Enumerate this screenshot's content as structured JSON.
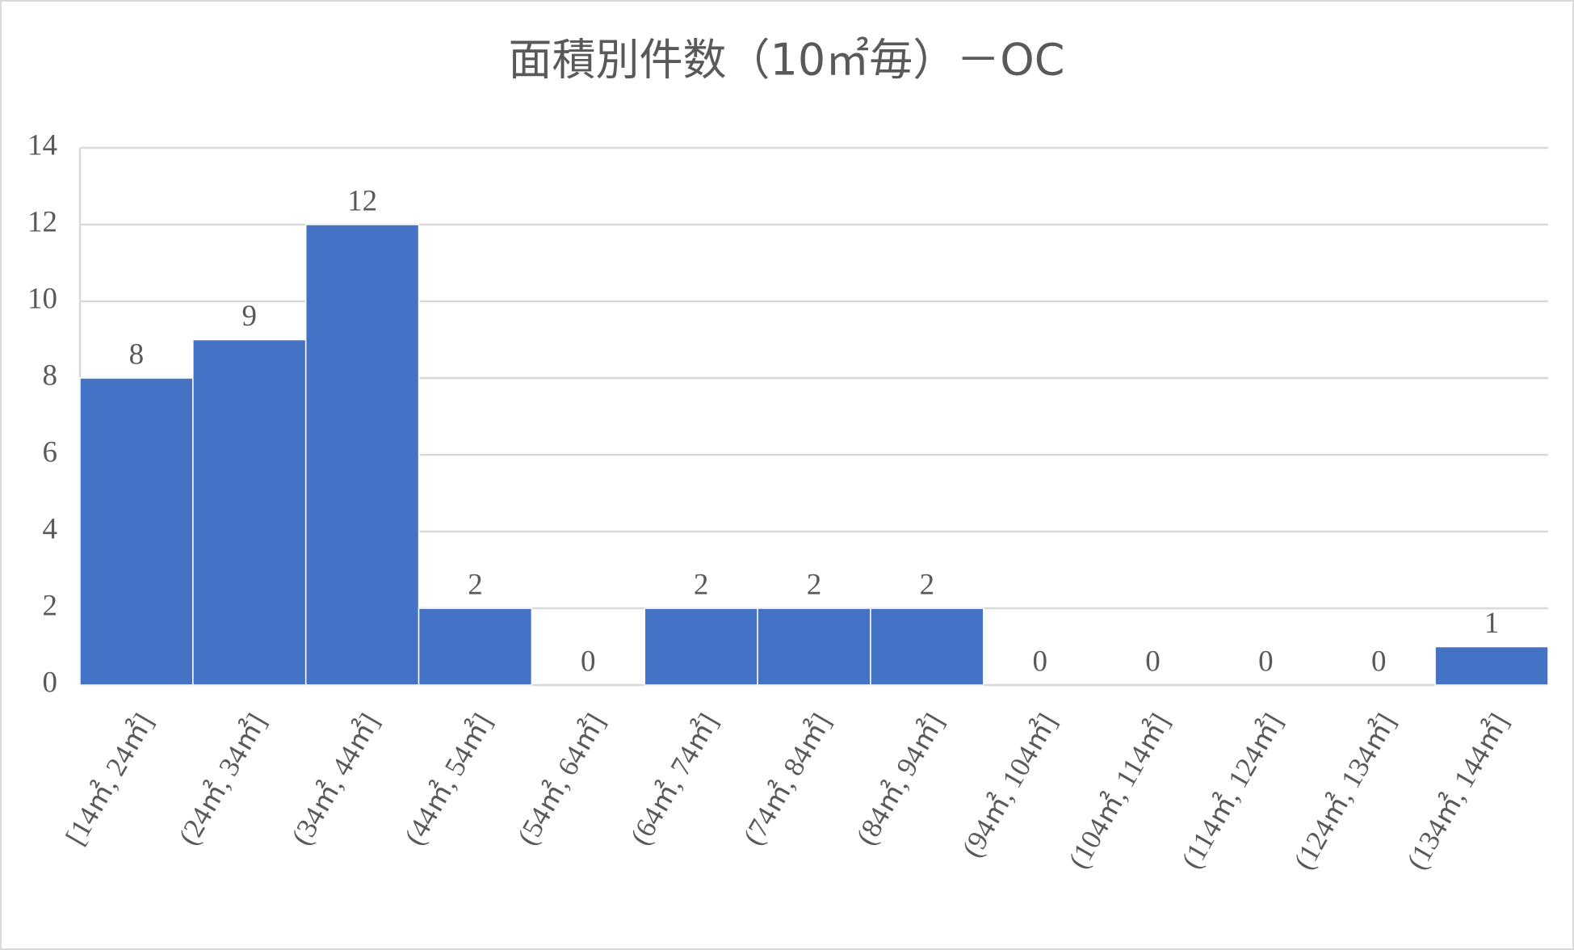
{
  "chart_data": {
    "type": "bar",
    "title": "面積別件数（10㎡毎）－OC",
    "categories": [
      "[14㎡, 24㎡]",
      "(24㎡, 34㎡]",
      "(34㎡, 44㎡]",
      "(44㎡, 54㎡]",
      "(54㎡, 64㎡]",
      "(64㎡, 74㎡]",
      "(74㎡, 84㎡]",
      "(84㎡, 94㎡]",
      "(94㎡, 104㎡]",
      "(104㎡, 114㎡]",
      "(114㎡, 124㎡]",
      "(124㎡, 134㎡]",
      "(134㎡, 144㎡]"
    ],
    "values": [
      8,
      9,
      12,
      2,
      0,
      2,
      2,
      2,
      0,
      0,
      0,
      0,
      1
    ],
    "color": "#4472c4",
    "ylim": [
      0,
      14
    ],
    "yticks": [
      0,
      2,
      4,
      6,
      8,
      10,
      12,
      14
    ],
    "grid": true
  }
}
